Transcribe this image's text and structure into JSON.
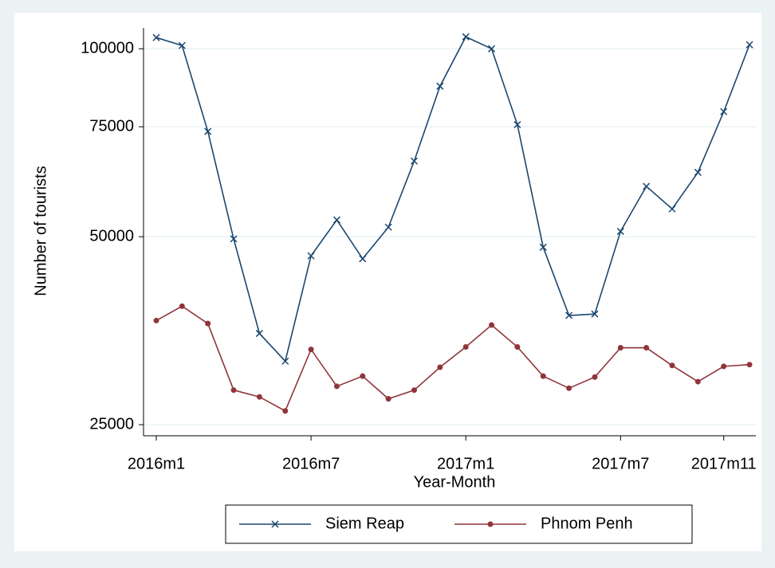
{
  "chart_data": {
    "type": "line",
    "x_label": "Year-Month",
    "y_label": "Number of tourists",
    "categories": [
      "2016m1",
      null,
      null,
      null,
      null,
      null,
      "2016m7",
      null,
      null,
      null,
      null,
      null,
      "2017m1",
      null,
      null,
      null,
      null,
      null,
      "2017m7",
      null,
      null,
      null,
      "2017m11",
      null
    ],
    "series": [
      {
        "name": "Siem Reap",
        "color": "#1a476f",
        "marker": "x",
        "values": [
          104200,
          101200,
          73700,
          49600,
          35000,
          31600,
          46600,
          53200,
          46100,
          51800,
          66100,
          87100,
          104500,
          100000,
          75600,
          48100,
          37400,
          37600,
          51000,
          60200,
          55400,
          63400,
          79300,
          101500
        ]
      },
      {
        "name": "Phnom Penh",
        "color": "#90353b",
        "marker": "circle",
        "values": [
          36700,
          38700,
          36300,
          28400,
          27700,
          26300,
          33000,
          28800,
          29900,
          27500,
          28400,
          30900,
          33300,
          36100,
          33300,
          29900,
          28600,
          29800,
          33200,
          33200,
          31100,
          29300,
          31000,
          31200
        ]
      }
    ],
    "ylim": [
      24000,
      108000
    ],
    "yticks": [
      25000,
      50000,
      75000,
      100000
    ],
    "log_scale": true,
    "grid": true,
    "legend_position": "bottom"
  }
}
